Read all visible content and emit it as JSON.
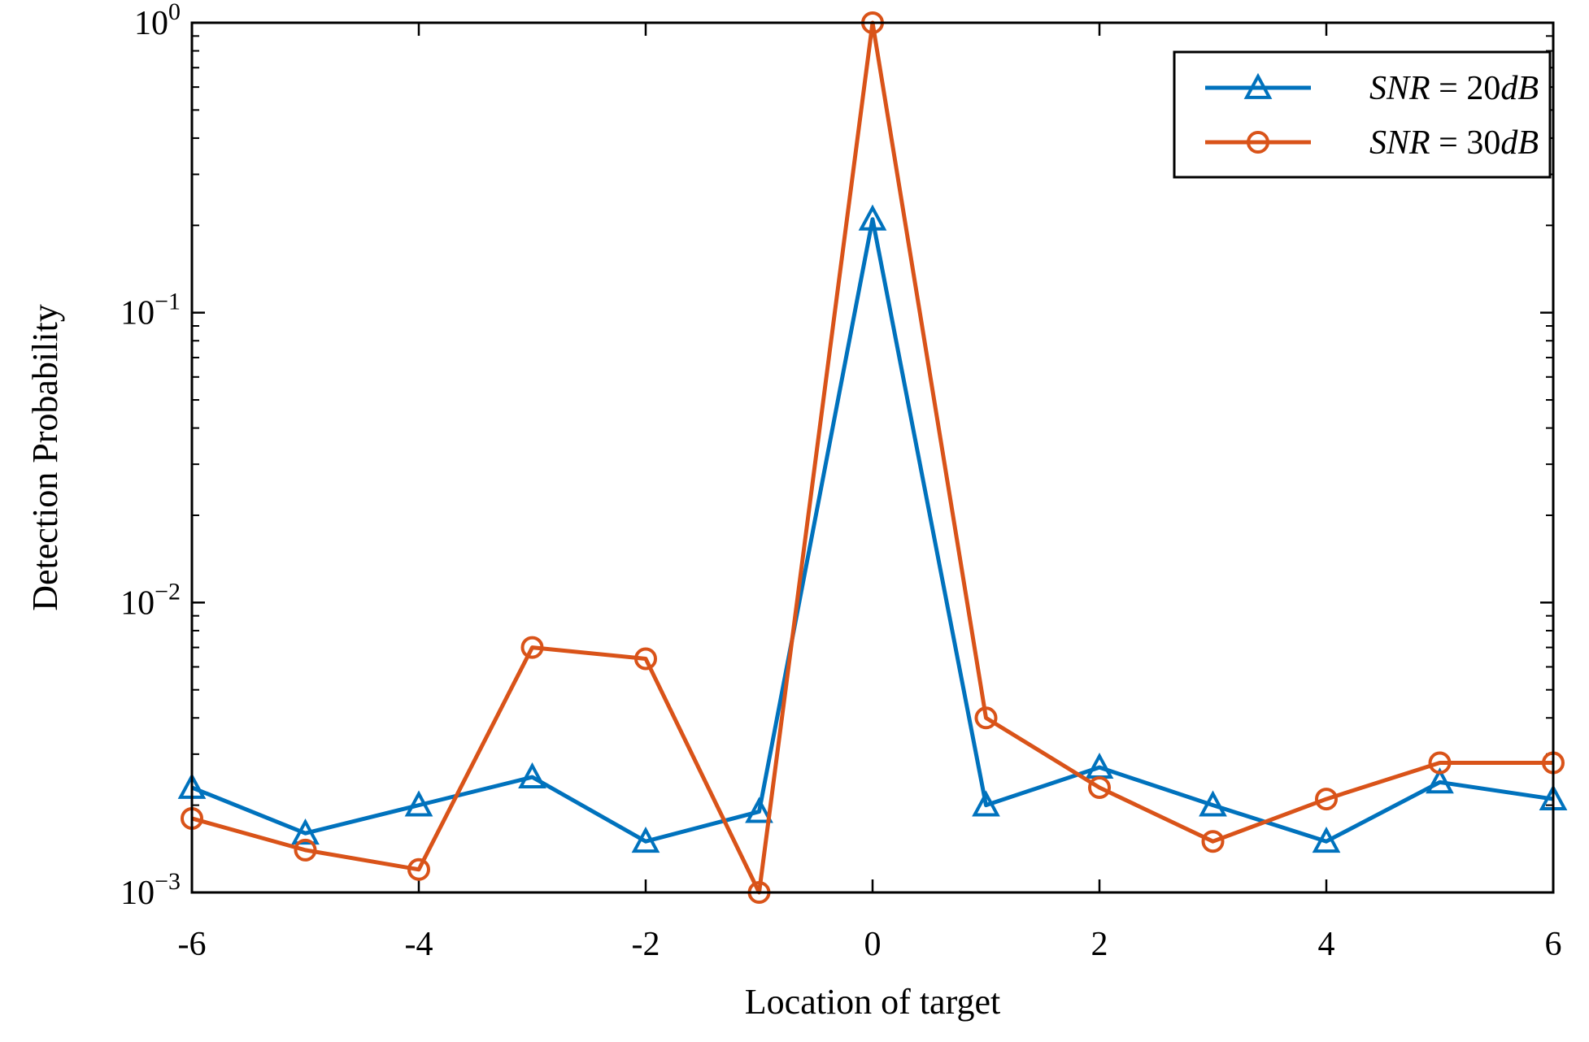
{
  "chart_data": {
    "type": "line",
    "xlabel": "Location of target",
    "ylabel": "Detection Probability",
    "xlim": [
      -6,
      6
    ],
    "ylim": [
      0.001,
      1
    ],
    "yscale": "log",
    "x_ticks": [
      -6,
      -4,
      -2,
      0,
      2,
      4,
      6
    ],
    "x_tick_labels": [
      "-6",
      "-4",
      "-2",
      "0",
      "2",
      "4",
      "6"
    ],
    "y_ticks": [
      {
        "value": 0.001,
        "base": "10",
        "exp": "−3"
      },
      {
        "value": 0.01,
        "base": "10",
        "exp": "−2"
      },
      {
        "value": 0.1,
        "base": "10",
        "exp": "−1"
      },
      {
        "value": 1,
        "base": "10",
        "exp": "0"
      }
    ],
    "grid": false,
    "legend_position": "top-right",
    "x": [
      -6,
      -5,
      -4,
      -3,
      -2,
      -1,
      0,
      1,
      2,
      3,
      4,
      5,
      6
    ],
    "series": [
      {
        "legend": {
          "var": "SNR",
          "op": " = ",
          "num": "20",
          "unit": "dB"
        },
        "color": "#0072BD",
        "marker": "triangle",
        "values": [
          0.0023,
          0.0016,
          0.002,
          0.0025,
          0.0015,
          0.0019,
          0.21,
          0.002,
          0.0027,
          0.002,
          0.0015,
          0.0024,
          0.0021
        ]
      },
      {
        "legend": {
          "var": "SNR",
          "op": " = ",
          "num": "30",
          "unit": "dB"
        },
        "color": "#D95319",
        "marker": "circle",
        "values": [
          0.0018,
          0.0014,
          0.0012,
          0.007,
          0.0064,
          0.001,
          1.0,
          0.004,
          0.0023,
          0.0015,
          0.0021,
          0.0028,
          0.0028
        ]
      }
    ]
  }
}
